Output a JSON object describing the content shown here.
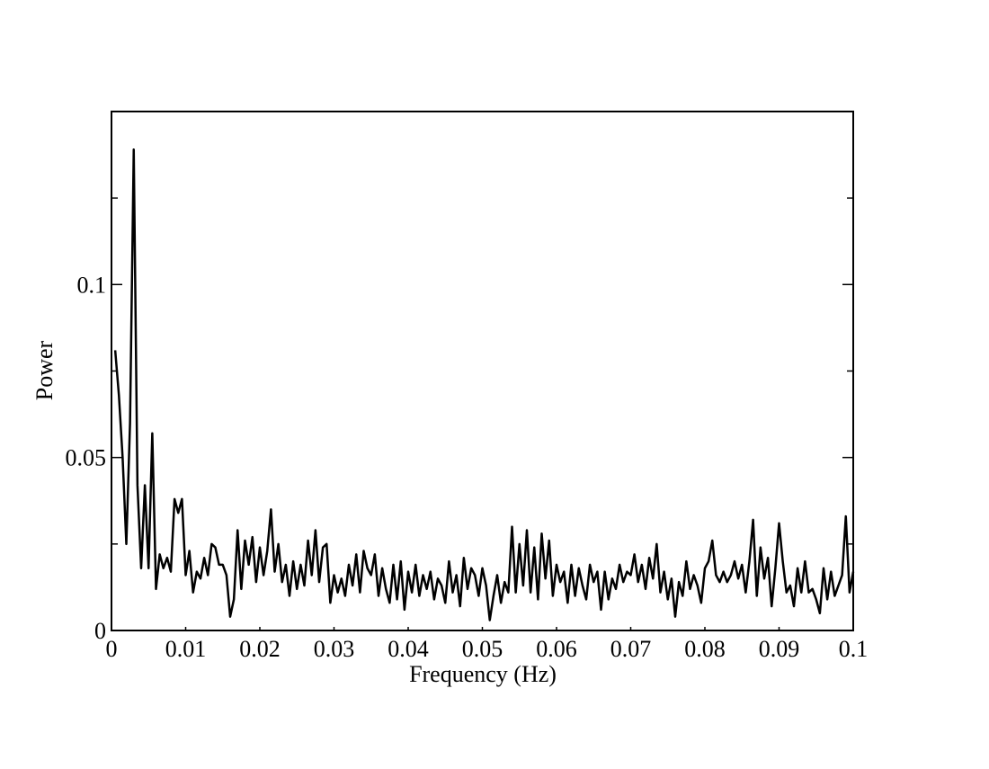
{
  "chart_data": {
    "type": "line",
    "xlabel": "Frequency (Hz)",
    "ylabel": "Power",
    "xlim": [
      0,
      0.1
    ],
    "ylim": [
      0,
      0.15
    ],
    "xticks": [
      0,
      0.01,
      0.02,
      0.03,
      0.04,
      0.05,
      0.06,
      0.07,
      0.08,
      0.09,
      0.1
    ],
    "yticks": [
      0,
      0.05,
      0.1
    ],
    "yminorticks": [
      0.025,
      0.075,
      0.125
    ],
    "grid": false,
    "x": [
      0.0005,
      0.001,
      0.0015,
      0.002,
      0.0025,
      0.003,
      0.0035,
      0.004,
      0.0045,
      0.005,
      0.0055,
      0.006,
      0.0065,
      0.007,
      0.0075,
      0.008,
      0.0085,
      0.009,
      0.0095,
      0.01,
      0.0105,
      0.011,
      0.0115,
      0.012,
      0.0125,
      0.013,
      0.0135,
      0.014,
      0.0145,
      0.015,
      0.0155,
      0.016,
      0.0165,
      0.017,
      0.0175,
      0.018,
      0.0185,
      0.019,
      0.0195,
      0.02,
      0.0205,
      0.021,
      0.0215,
      0.022,
      0.0225,
      0.023,
      0.0235,
      0.024,
      0.0245,
      0.025,
      0.0255,
      0.026,
      0.0265,
      0.027,
      0.0275,
      0.028,
      0.0285,
      0.029,
      0.0295,
      0.03,
      0.0305,
      0.031,
      0.0315,
      0.032,
      0.0325,
      0.033,
      0.0335,
      0.034,
      0.0345,
      0.035,
      0.0355,
      0.036,
      0.0365,
      0.037,
      0.0375,
      0.038,
      0.0385,
      0.039,
      0.0395,
      0.04,
      0.0405,
      0.041,
      0.0415,
      0.042,
      0.0425,
      0.043,
      0.0435,
      0.044,
      0.0445,
      0.045,
      0.0455,
      0.046,
      0.0465,
      0.047,
      0.0475,
      0.048,
      0.0485,
      0.049,
      0.0495,
      0.05,
      0.0505,
      0.051,
      0.0515,
      0.052,
      0.0525,
      0.053,
      0.0535,
      0.054,
      0.0545,
      0.055,
      0.0555,
      0.056,
      0.0565,
      0.057,
      0.0575,
      0.058,
      0.0585,
      0.059,
      0.0595,
      0.06,
      0.0605,
      0.061,
      0.0615,
      0.062,
      0.0625,
      0.063,
      0.0635,
      0.064,
      0.0645,
      0.065,
      0.0655,
      0.066,
      0.0665,
      0.067,
      0.0675,
      0.068,
      0.0685,
      0.069,
      0.0695,
      0.07,
      0.0705,
      0.071,
      0.0715,
      0.072,
      0.0725,
      0.073,
      0.0735,
      0.074,
      0.0745,
      0.075,
      0.0755,
      0.076,
      0.0765,
      0.077,
      0.0775,
      0.078,
      0.0785,
      0.079,
      0.0795,
      0.08,
      0.0805,
      0.081,
      0.0815,
      0.082,
      0.0825,
      0.083,
      0.0835,
      0.084,
      0.0845,
      0.085,
      0.0855,
      0.086,
      0.0865,
      0.087,
      0.0875,
      0.088,
      0.0885,
      0.089,
      0.0895,
      0.09,
      0.0905,
      0.091,
      0.0915,
      0.092,
      0.0925,
      0.093,
      0.0935,
      0.094,
      0.0945,
      0.095,
      0.0955,
      0.096,
      0.0965,
      0.097,
      0.0975,
      0.098,
      0.0985,
      0.099,
      0.0995,
      0.1
    ],
    "series": [
      {
        "color": "#000000",
        "values": [
          0.081,
          0.068,
          0.05,
          0.025,
          0.06,
          0.139,
          0.042,
          0.018,
          0.042,
          0.018,
          0.057,
          0.012,
          0.022,
          0.018,
          0.021,
          0.017,
          0.038,
          0.034,
          0.038,
          0.016,
          0.023,
          0.011,
          0.017,
          0.015,
          0.021,
          0.016,
          0.025,
          0.024,
          0.019,
          0.019,
          0.016,
          0.004,
          0.009,
          0.029,
          0.012,
          0.026,
          0.019,
          0.027,
          0.014,
          0.024,
          0.016,
          0.023,
          0.035,
          0.017,
          0.025,
          0.014,
          0.019,
          0.01,
          0.02,
          0.012,
          0.019,
          0.013,
          0.026,
          0.016,
          0.029,
          0.014,
          0.024,
          0.025,
          0.008,
          0.016,
          0.011,
          0.015,
          0.01,
          0.019,
          0.013,
          0.022,
          0.011,
          0.023,
          0.018,
          0.016,
          0.022,
          0.01,
          0.018,
          0.012,
          0.008,
          0.019,
          0.009,
          0.02,
          0.006,
          0.017,
          0.011,
          0.019,
          0.01,
          0.016,
          0.012,
          0.017,
          0.009,
          0.015,
          0.013,
          0.008,
          0.02,
          0.011,
          0.016,
          0.007,
          0.021,
          0.012,
          0.018,
          0.016,
          0.01,
          0.018,
          0.013,
          0.003,
          0.01,
          0.016,
          0.008,
          0.014,
          0.011,
          0.03,
          0.011,
          0.025,
          0.013,
          0.029,
          0.011,
          0.024,
          0.009,
          0.028,
          0.015,
          0.026,
          0.01,
          0.019,
          0.014,
          0.017,
          0.008,
          0.019,
          0.01,
          0.018,
          0.013,
          0.009,
          0.019,
          0.014,
          0.017,
          0.006,
          0.017,
          0.009,
          0.015,
          0.012,
          0.019,
          0.014,
          0.017,
          0.016,
          0.022,
          0.014,
          0.019,
          0.012,
          0.021,
          0.015,
          0.025,
          0.011,
          0.017,
          0.009,
          0.015,
          0.004,
          0.014,
          0.01,
          0.02,
          0.012,
          0.016,
          0.013,
          0.008,
          0.018,
          0.02,
          0.026,
          0.016,
          0.014,
          0.017,
          0.014,
          0.016,
          0.02,
          0.015,
          0.019,
          0.011,
          0.02,
          0.032,
          0.01,
          0.024,
          0.015,
          0.021,
          0.007,
          0.018,
          0.031,
          0.02,
          0.011,
          0.013,
          0.007,
          0.018,
          0.011,
          0.02,
          0.011,
          0.012,
          0.009,
          0.005,
          0.018,
          0.009,
          0.017,
          0.01,
          0.013,
          0.016,
          0.033,
          0.011,
          0.017
        ]
      }
    ]
  }
}
